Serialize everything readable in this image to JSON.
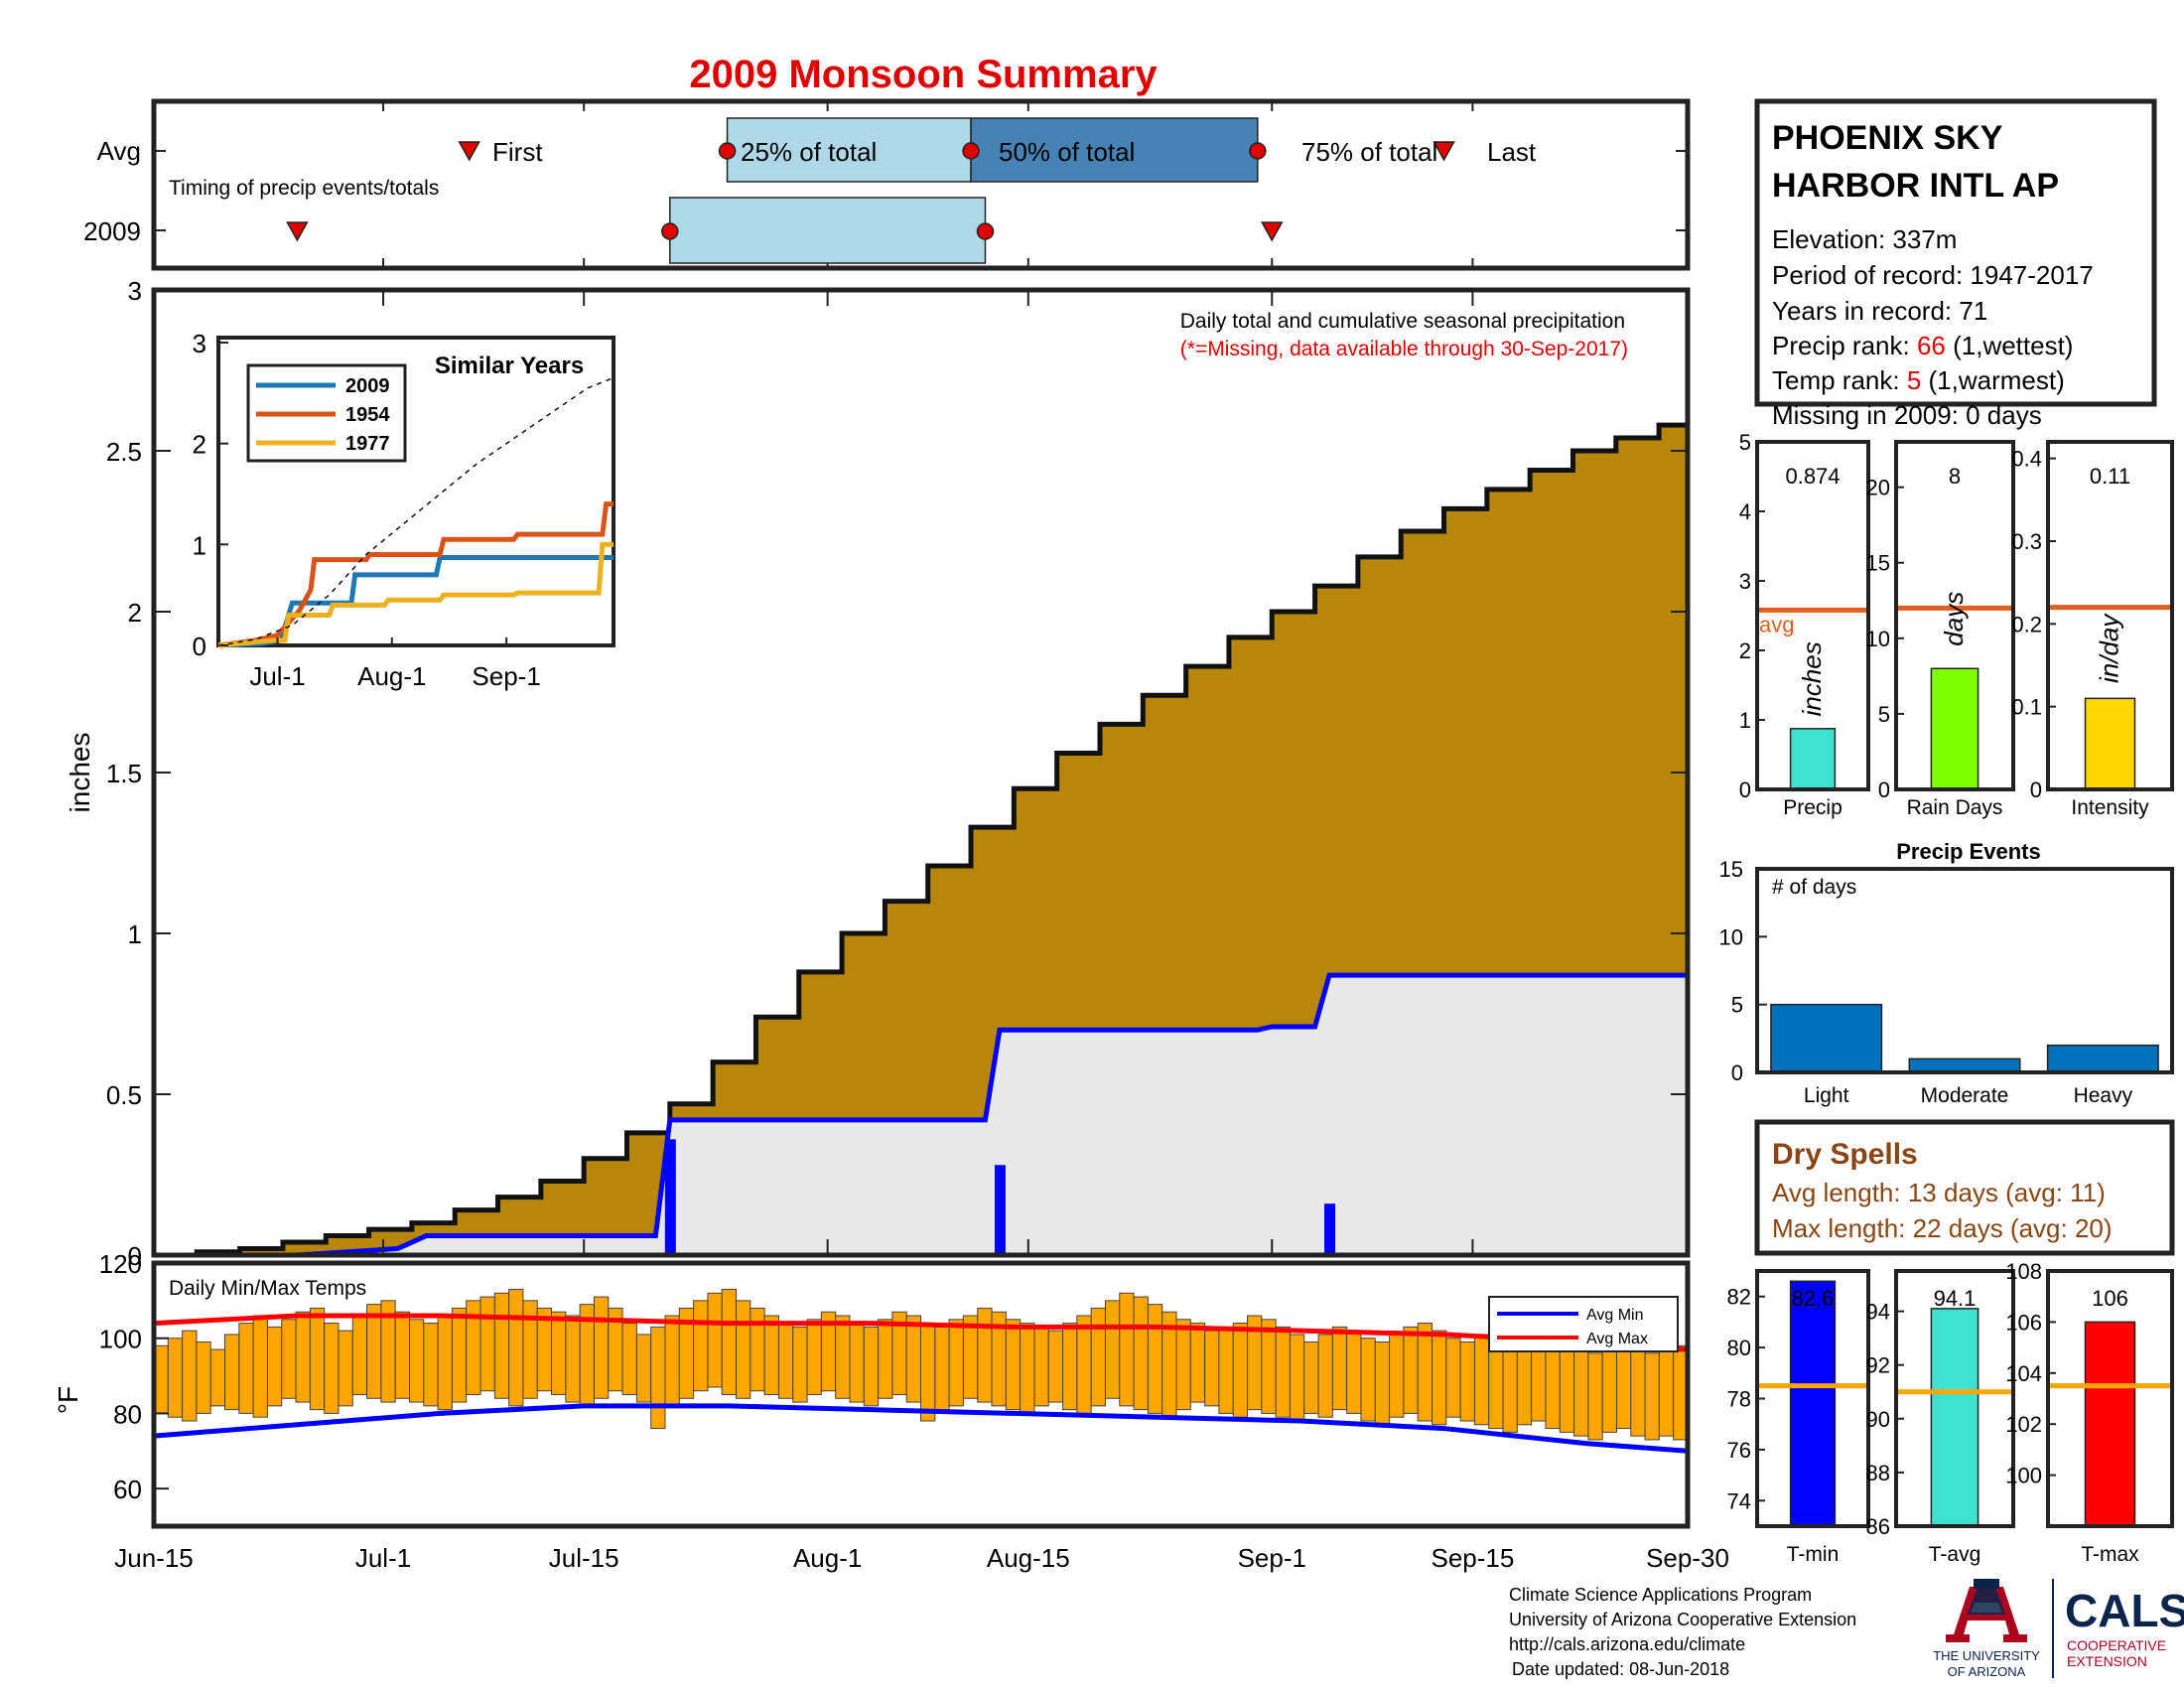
{
  "title": "2009 Monsoon Summary",
  "axis_dates": [
    "Jun-15",
    "Jul-1",
    "Jul-15",
    "Aug-1",
    "Aug-15",
    "Sep-1",
    "Sep-15",
    "Sep-30"
  ],
  "colors": {
    "cumulative_avg_fill": "#b8860b",
    "current_fill": "#e8e8e8",
    "current_line": "#0000ff",
    "title": "#e00000",
    "dry": "#8b4513",
    "quartile_light": "#add8e6",
    "quartile_dark": "#4682b4",
    "marker": "#e00000",
    "avg_line": "#e06020",
    "temp_bar": "#ffa500",
    "avg_min": "#0000ff",
    "avg_max": "#ff0000",
    "ref_line": "#ffa500"
  },
  "timing_panel": {
    "row_labels": [
      "Avg",
      "2009"
    ],
    "note": "Timing of precip events/totals",
    "first_label": "First",
    "p25_label": "25% of total",
    "p50_label": "50% of total",
    "p75_label": "75% of total",
    "last_label": "Last"
  },
  "station": {
    "line1": "PHOENIX SKY",
    "line2": "HARBOR INTL AP",
    "elevation": "Elevation: 337m",
    "period": "Period of record: 1947-2017",
    "years": "Years in record: 71",
    "precip_rank_label": "Precip rank: ",
    "precip_rank_value": "66",
    "precip_rank_suffix": " (1,wettest)",
    "temp_rank_label": "Temp rank: ",
    "temp_rank_value": "5",
    "temp_rank_suffix": " (1,warmest)",
    "missing": "Missing in 2009: 0 days"
  },
  "main_panel": {
    "ylabel": "inches",
    "note": "Daily total and cumulative seasonal precipitation",
    "missing_note": "(*=Missing, data available through 30-Sep-2017)"
  },
  "inset": {
    "title": "Similar Years",
    "x_ticks": [
      "Jul-1",
      "Aug-1",
      "Sep-1"
    ]
  },
  "mini_bars": [
    {
      "label": "Precip",
      "value_text": "0.874",
      "unit": "inches",
      "avg_text": "avg"
    },
    {
      "label": "Rain Days",
      "value_text": "8",
      "unit": "days"
    },
    {
      "label": "Intensity",
      "value_text": "0.11",
      "unit": "in/day"
    }
  ],
  "events": {
    "title": "Precip Events",
    "note": "# of days"
  },
  "dry_spells": {
    "title": "Dry Spells",
    "avg": "Avg length: 13 days (avg: 11)",
    "max": "Max length: 22 days (avg: 20)"
  },
  "temp_panel": {
    "title": "Daily Min/Max Temps",
    "ylabel": "°F",
    "legend_min": "Avg Min",
    "legend_max": "Avg Max"
  },
  "temp_bars": [
    {
      "label": "T-min",
      "value_text": "82.6"
    },
    {
      "label": "T-avg",
      "value_text": "94.1"
    },
    {
      "label": "T-max",
      "value_text": "106"
    }
  ],
  "footer": {
    "line1": "Climate Science Applications Program",
    "line2": "University of Arizona Cooperative Extension",
    "line3": "http://cals.arizona.edu/climate",
    "line4": "Date updated: 08-Jun-2018",
    "ua_line1": "THE UNIVERSITY",
    "ua_line2": "OF ARIZONA",
    "cals_name": "CALS",
    "cals_sub1": "COOPERATIVE",
    "cals_sub2": "EXTENSION"
  },
  "chart_data": [
    {
      "type": "bar",
      "title": "Timing of precip events/totals",
      "unit": "day of season (0 = Jun-15)",
      "rows": [
        {
          "row": "Avg",
          "first": 22,
          "p25": 40,
          "p50": 57,
          "p75": 77,
          "last": 90
        },
        {
          "row": "2009",
          "first": 10,
          "p25": 36,
          "p50": 58,
          "p75": 78
        }
      ]
    },
    {
      "type": "area",
      "title": "Daily total and cumulative seasonal precipitation",
      "ylabel": "inches",
      "x_unit": "day of season (0 = Jun-15, 107 = Sep-30)",
      "ylim": [
        0,
        3
      ],
      "y_ticks": [
        0,
        0.5,
        1,
        1.5,
        2,
        2.5,
        3
      ],
      "average_cumulative": {
        "x": [
          0,
          3,
          6,
          9,
          12,
          15,
          18,
          21,
          24,
          27,
          30,
          33,
          36,
          39,
          42,
          45,
          48,
          51,
          54,
          57,
          60,
          63,
          66,
          69,
          72,
          75,
          78,
          81,
          84,
          87,
          90,
          93,
          96,
          99,
          102,
          105,
          107
        ],
        "values": [
          0.0,
          0.01,
          0.02,
          0.04,
          0.06,
          0.08,
          0.1,
          0.14,
          0.18,
          0.23,
          0.3,
          0.38,
          0.47,
          0.6,
          0.74,
          0.88,
          1.0,
          1.1,
          1.21,
          1.33,
          1.45,
          1.56,
          1.65,
          1.74,
          1.83,
          1.92,
          2.0,
          2.08,
          2.17,
          2.25,
          2.32,
          2.38,
          2.44,
          2.5,
          2.54,
          2.58,
          2.58
        ]
      },
      "current_cumulative": {
        "x": [
          0,
          10,
          17,
          18,
          19,
          35,
          36,
          58,
          59,
          77,
          78,
          81,
          82,
          107
        ],
        "values": [
          0.0,
          0.0,
          0.02,
          0.04,
          0.06,
          0.06,
          0.42,
          0.42,
          0.7,
          0.7,
          0.71,
          0.71,
          0.87,
          0.87
        ]
      },
      "daily_bars": [
        {
          "x": 36,
          "value": 0.36
        },
        {
          "x": 59,
          "value": 0.28
        },
        {
          "x": 82,
          "value": 0.16
        }
      ]
    },
    {
      "type": "line",
      "title": "Similar Years",
      "ylim": [
        0,
        3
      ],
      "y_ticks": [
        0,
        1,
        2,
        3
      ],
      "x_unit": "day of season (0 = Jun-15)",
      "series": [
        {
          "name": "2009",
          "color": "#1f77b4",
          "x": [
            0,
            12,
            17,
            19,
            20,
            36,
            37,
            59,
            60,
            78,
            79,
            107
          ],
          "values": [
            0,
            0.02,
            0.05,
            0.3,
            0.42,
            0.42,
            0.7,
            0.7,
            0.87,
            0.87,
            0.87,
            0.87
          ]
        },
        {
          "name": "1954",
          "color": "#d95319",
          "x": [
            0,
            10,
            16,
            22,
            25,
            26,
            40,
            41,
            60,
            61,
            80,
            81,
            104,
            105,
            107
          ],
          "values": [
            0,
            0.05,
            0.1,
            0.35,
            0.55,
            0.85,
            0.85,
            0.9,
            0.9,
            1.05,
            1.05,
            1.1,
            1.1,
            1.4,
            1.4
          ]
        },
        {
          "name": "1977",
          "color": "#edb120",
          "x": [
            0,
            15,
            18,
            19,
            30,
            31,
            45,
            46,
            60,
            61,
            80,
            81,
            103,
            104,
            107
          ],
          "values": [
            0,
            0.05,
            0.05,
            0.3,
            0.3,
            0.4,
            0.4,
            0.45,
            0.45,
            0.5,
            0.5,
            0.52,
            0.52,
            1.0,
            1.0
          ]
        },
        {
          "name": "Average",
          "x": [
            0,
            10,
            20,
            30,
            40,
            50,
            60,
            70,
            80,
            90,
            100,
            107
          ],
          "values": [
            0,
            0.06,
            0.2,
            0.5,
            0.9,
            1.2,
            1.5,
            1.8,
            2.05,
            2.3,
            2.55,
            2.65
          ]
        }
      ]
    },
    {
      "type": "bar",
      "title": "Precip",
      "ylim": [
        0,
        5
      ],
      "y_ticks": [
        0,
        1,
        2,
        3,
        4,
        5
      ],
      "value": 0.874,
      "average": 2.58
    },
    {
      "type": "bar",
      "title": "Rain Days",
      "ylim": [
        0,
        23
      ],
      "y_ticks": [
        0,
        5,
        10,
        15,
        20
      ],
      "value": 8,
      "average": 12
    },
    {
      "type": "bar",
      "title": "Intensity",
      "ylim": [
        0,
        0.42
      ],
      "y_ticks": [
        0,
        0.1,
        0.2,
        0.3,
        0.4
      ],
      "value": 0.11,
      "average": 0.22
    },
    {
      "type": "bar",
      "title": "Precip Events",
      "categories": [
        "Light",
        "Moderate",
        "Heavy"
      ],
      "values": [
        5,
        1,
        2
      ],
      "ylim": [
        0,
        15
      ],
      "y_ticks": [
        0,
        5,
        10,
        15
      ]
    },
    {
      "type": "bar",
      "title": "Daily Min/Max Temps",
      "ylabel": "°F",
      "ylim": [
        50,
        120
      ],
      "y_ticks": [
        60,
        80,
        100,
        120
      ],
      "x_unit": "day of season (0 = Jun-15)",
      "daily_min": [
        80,
        79,
        78,
        80,
        82,
        81,
        80,
        79,
        82,
        84,
        83,
        81,
        80,
        82,
        85,
        84,
        83,
        84,
        83,
        82,
        81,
        83,
        85,
        86,
        84,
        82,
        84,
        86,
        85,
        83,
        82,
        84,
        86,
        85,
        83,
        76,
        82,
        84,
        86,
        87,
        85,
        84,
        86,
        85,
        84,
        83,
        85,
        86,
        84,
        83,
        82,
        84,
        85,
        83,
        78,
        80,
        82,
        84,
        83,
        82,
        81,
        80,
        82,
        83,
        81,
        80,
        82,
        84,
        82,
        81,
        80,
        79,
        81,
        83,
        82,
        80,
        79,
        81,
        80,
        79,
        78,
        80,
        79,
        81,
        80,
        78,
        77,
        79,
        80,
        78,
        77,
        79,
        78,
        77,
        76,
        75,
        77,
        78,
        76,
        75,
        74,
        73,
        75,
        76,
        74,
        73,
        74,
        73
      ],
      "daily_max": [
        98,
        100,
        102,
        99,
        97,
        101,
        104,
        106,
        103,
        105,
        107,
        108,
        104,
        102,
        106,
        109,
        110,
        107,
        105,
        104,
        106,
        108,
        110,
        111,
        112,
        113,
        110,
        108,
        107,
        106,
        109,
        111,
        108,
        104,
        101,
        103,
        106,
        108,
        110,
        112,
        113,
        110,
        108,
        106,
        104,
        103,
        105,
        107,
        106,
        104,
        103,
        105,
        107,
        106,
        104,
        103,
        105,
        106,
        108,
        107,
        105,
        104,
        103,
        102,
        104,
        106,
        108,
        110,
        112,
        111,
        109,
        107,
        105,
        104,
        102,
        103,
        104,
        106,
        105,
        103,
        101,
        99,
        101,
        103,
        102,
        100,
        99,
        101,
        103,
        104,
        102,
        100,
        99,
        101,
        100,
        98,
        97,
        99,
        100,
        98,
        97,
        96,
        98,
        99,
        97,
        96,
        97,
        98
      ],
      "avg_min": {
        "x": [
          0,
          10,
          20,
          30,
          40,
          50,
          60,
          70,
          80,
          90,
          100,
          107
        ],
        "values": [
          74,
          77,
          80,
          82,
          82,
          81,
          80,
          79,
          78,
          76,
          72,
          70
        ]
      },
      "avg_max": {
        "x": [
          0,
          10,
          20,
          30,
          40,
          50,
          60,
          70,
          80,
          90,
          100,
          107
        ],
        "values": [
          104,
          106,
          106,
          105,
          104,
          104,
          103,
          103,
          102,
          101,
          99,
          97
        ]
      }
    },
    {
      "type": "bar",
      "title": "T-min",
      "ylim": [
        73,
        83
      ],
      "y_ticks": [
        74,
        76,
        78,
        80,
        82
      ],
      "value": 82.6,
      "average": 78.5
    },
    {
      "type": "bar",
      "title": "T-avg",
      "ylim": [
        86,
        95.5
      ],
      "y_ticks": [
        86,
        88,
        90,
        92,
        94
      ],
      "value": 94.1,
      "average": 91.0
    },
    {
      "type": "bar",
      "title": "T-max",
      "ylim": [
        98,
        108
      ],
      "y_ticks": [
        100,
        102,
        104,
        106,
        108
      ],
      "value": 106,
      "average": 103.5
    }
  ]
}
